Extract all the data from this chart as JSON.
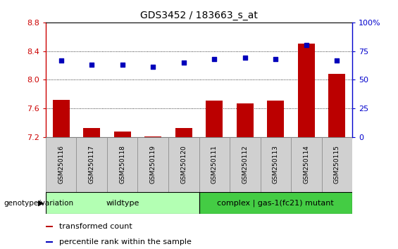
{
  "title": "GDS3452 / 183663_s_at",
  "samples": [
    "GSM250116",
    "GSM250117",
    "GSM250118",
    "GSM250119",
    "GSM250120",
    "GSM250111",
    "GSM250112",
    "GSM250113",
    "GSM250114",
    "GSM250115"
  ],
  "transformed_count": [
    7.72,
    7.32,
    7.28,
    7.21,
    7.32,
    7.71,
    7.67,
    7.71,
    8.5,
    8.08
  ],
  "percentile_rank": [
    67,
    63,
    63,
    61,
    65,
    68,
    69,
    68,
    80,
    67
  ],
  "ylim_left": [
    7.2,
    8.8
  ],
  "ylim_right": [
    0,
    100
  ],
  "yticks_left": [
    7.2,
    7.6,
    8.0,
    8.4,
    8.8
  ],
  "yticks_right": [
    0,
    25,
    50,
    75,
    100
  ],
  "bar_color": "#bb0000",
  "dot_color": "#0000bb",
  "wildtype_color": "#b3ffb3",
  "mutant_color": "#44cc44",
  "wildtype_label": "wildtype",
  "mutant_label": "complex | gas-1(fc21) mutant",
  "wildtype_count": 5,
  "mutant_count": 5,
  "legend_bar_label": "transformed count",
  "legend_dot_label": "percentile rank within the sample",
  "xlabel_left": "genotype/variation",
  "axis_color_left": "#cc0000",
  "axis_color_right": "#0000cc",
  "background_color": "#ffffff",
  "plot_bg": "#ffffff",
  "bar_bottom": 7.2,
  "grid_lines": [
    7.6,
    8.0,
    8.4
  ],
  "sample_box_color": "#d0d0d0",
  "sample_box_edge": "#888888"
}
